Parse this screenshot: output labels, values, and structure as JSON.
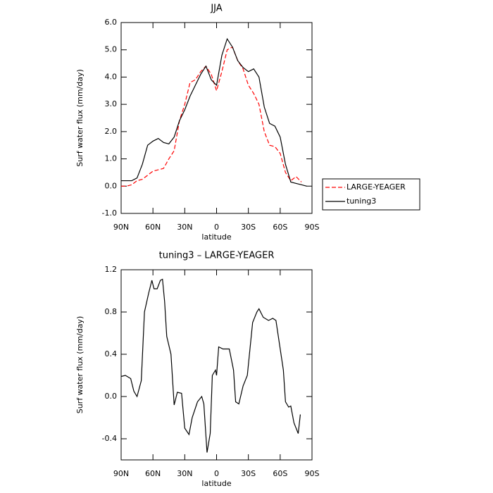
{
  "chart_data": [
    {
      "type": "line",
      "title": "JJA",
      "xlabel": "latitude",
      "ylabel": "Surf water flux (mm/day)",
      "x": [
        90,
        85,
        80,
        75,
        70,
        65,
        60,
        55,
        50,
        45,
        40,
        35,
        30,
        25,
        20,
        15,
        10,
        5,
        0,
        -5,
        -10,
        -15,
        -20,
        -25,
        -30,
        -35,
        -40,
        -45,
        -50,
        -55,
        -60,
        -65,
        -70,
        -75,
        -80,
        -85
      ],
      "series": [
        {
          "name": "LARGE-YEAGER",
          "color": "#ff0000",
          "dash": true,
          "values": [
            0.0,
            0.0,
            0.05,
            0.2,
            0.25,
            0.4,
            0.55,
            0.6,
            0.65,
            1.0,
            1.3,
            2.4,
            3.0,
            3.8,
            3.9,
            4.2,
            4.4,
            4.1,
            3.5,
            4.2,
            5.0,
            5.1,
            4.6,
            4.3,
            3.7,
            3.4,
            3.0,
            2.0,
            1.5,
            1.45,
            1.2,
            0.5,
            0.2,
            0.35,
            0.15,
            null
          ]
        },
        {
          "name": "tuning3",
          "color": "#000000",
          "dash": false,
          "values": [
            0.2,
            0.2,
            0.2,
            0.3,
            0.8,
            1.5,
            1.65,
            1.75,
            1.6,
            1.55,
            1.8,
            2.4,
            2.8,
            3.3,
            3.7,
            4.1,
            4.4,
            3.9,
            3.7,
            4.8,
            5.4,
            5.1,
            4.6,
            4.35,
            4.2,
            4.3,
            4.0,
            2.9,
            2.3,
            2.2,
            1.8,
            0.8,
            0.15,
            0.1,
            0.05,
            0.0
          ]
        }
      ],
      "xlim": [
        90,
        -90
      ],
      "xticks": [
        {
          "value": 90,
          "label": "90N"
        },
        {
          "value": 60,
          "label": "60N"
        },
        {
          "value": 30,
          "label": "30N"
        },
        0,
        {
          "value": -30,
          "label": "30S"
        },
        {
          "value": -60,
          "label": "60S"
        },
        {
          "value": -90,
          "label": "90S"
        }
      ],
      "ylim": [
        -1,
        6
      ],
      "yticks": [
        {
          "value": -1,
          "label": "-1.0"
        },
        {
          "value": 0,
          "label": "0.0"
        },
        {
          "value": 1,
          "label": "1.0"
        },
        {
          "value": 2,
          "label": "2.0"
        },
        {
          "value": 3,
          "label": "3.0"
        },
        {
          "value": 4,
          "label": "4.0"
        },
        {
          "value": 5,
          "label": "5.0"
        },
        {
          "value": 6,
          "label": "6.0"
        }
      ],
      "legend": "outside-right"
    },
    {
      "type": "line",
      "title": "tuning3 – LARGE-YEAGER",
      "xlabel": "latitude",
      "ylabel": "Surf water flux (mm/day)",
      "x": [
        90,
        86,
        81,
        78,
        75,
        71,
        68,
        64,
        61,
        59,
        56,
        53,
        51,
        49,
        47,
        43,
        40,
        37,
        33,
        30,
        26,
        23,
        18,
        14,
        12,
        9,
        6,
        4,
        1,
        0,
        -2,
        -6,
        -12,
        -16,
        -18,
        -21,
        -25,
        -29,
        -34,
        -38,
        -40,
        -44,
        -49,
        -53,
        -56,
        -63,
        -65,
        -68,
        -70,
        -73,
        -77,
        -79
      ],
      "values": [
        0.19,
        0.2,
        0.17,
        0.05,
        0.0,
        0.15,
        0.8,
        0.98,
        1.1,
        1.02,
        1.02,
        1.1,
        1.11,
        0.9,
        0.57,
        0.4,
        -0.08,
        0.04,
        0.03,
        -0.3,
        -0.36,
        -0.2,
        -0.05,
        0.0,
        -0.07,
        -0.53,
        -0.35,
        0.2,
        0.25,
        0.2,
        0.47,
        0.45,
        0.45,
        0.25,
        -0.05,
        -0.07,
        0.1,
        0.2,
        0.7,
        0.8,
        0.83,
        0.75,
        0.72,
        0.74,
        0.72,
        0.25,
        -0.05,
        -0.1,
        -0.09,
        -0.25,
        -0.35,
        -0.17
      ],
      "color": "#000000",
      "xlim": [
        90,
        -90
      ],
      "xticks": [
        {
          "value": 90,
          "label": "90N"
        },
        {
          "value": 60,
          "label": "60N"
        },
        {
          "value": 30,
          "label": "30N"
        },
        0,
        {
          "value": -30,
          "label": "30S"
        },
        {
          "value": -60,
          "label": "60S"
        },
        {
          "value": -90,
          "label": "90S"
        }
      ],
      "ylim": [
        -0.6,
        1.2
      ],
      "yticks": [
        {
          "value": -0.4,
          "label": "-0.4"
        },
        {
          "value": 0,
          "label": "0.0"
        },
        0.4,
        0.8,
        1.2
      ]
    }
  ]
}
